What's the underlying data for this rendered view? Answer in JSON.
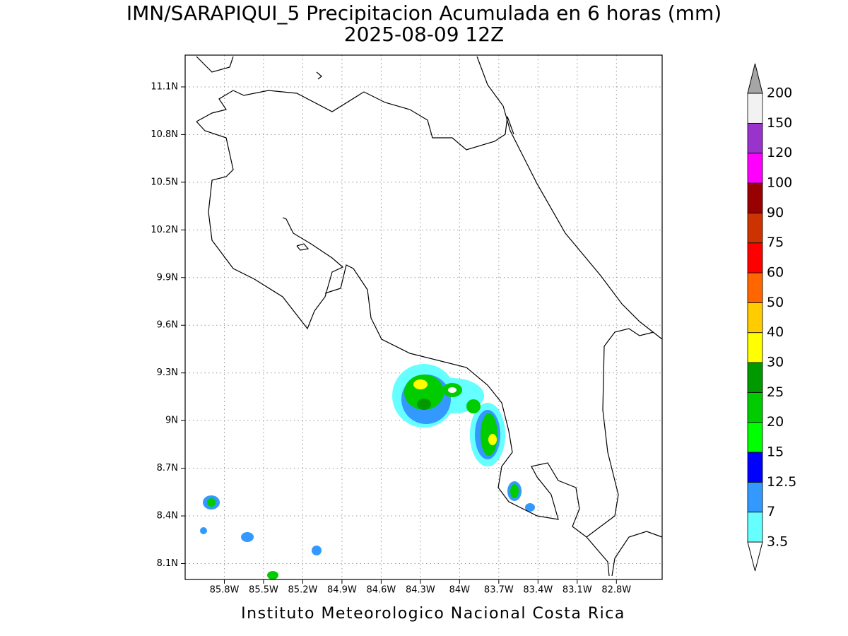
{
  "map": {
    "title": "IMN/SARAPIQUI_5 Precipitacion Acumulada en 6 horas (mm)",
    "subtitle": "2025-08-09 12Z",
    "footer": "Instituto Meteorologico Nacional Costa Rica",
    "xlim": [
      -86.1,
      -82.45
    ],
    "ylim": [
      8.0,
      11.3
    ],
    "grid": true,
    "xticks": [
      {
        "value": -85.8,
        "label": "85.8W"
      },
      {
        "value": -85.5,
        "label": "85.5W"
      },
      {
        "value": -85.2,
        "label": "85.2W"
      },
      {
        "value": -84.9,
        "label": "84.9W"
      },
      {
        "value": -84.6,
        "label": "84.6W"
      },
      {
        "value": -84.3,
        "label": "84.3W"
      },
      {
        "value": -84.0,
        "label": "84W"
      },
      {
        "value": -83.7,
        "label": "83.7W"
      },
      {
        "value": -83.4,
        "label": "83.4W"
      },
      {
        "value": -83.1,
        "label": "83.1W"
      },
      {
        "value": -82.8,
        "label": "82.8W"
      }
    ],
    "yticks": [
      {
        "value": 8.1,
        "label": "8.1N"
      },
      {
        "value": 8.4,
        "label": "8.4N"
      },
      {
        "value": 8.7,
        "label": "8.7N"
      },
      {
        "value": 9.0,
        "label": "9N"
      },
      {
        "value": 9.3,
        "label": "9.3N"
      },
      {
        "value": 9.6,
        "label": "9.6N"
      },
      {
        "value": 9.9,
        "label": "9.9N"
      },
      {
        "value": 10.2,
        "label": "10.2N"
      },
      {
        "value": 10.5,
        "label": "10.5N"
      },
      {
        "value": 10.8,
        "label": "10.8N"
      },
      {
        "value": 11.1,
        "label": "11.1N"
      }
    ],
    "colorbar": {
      "levels": [
        3.5,
        7,
        12.5,
        15,
        20,
        25,
        30,
        40,
        50,
        60,
        75,
        90,
        100,
        120,
        150,
        200
      ],
      "colors": [
        "#ffffff",
        "#66ffff",
        "#3399ff",
        "#0000ff",
        "#00ff00",
        "#00cc00",
        "#009900",
        "#ffff00",
        "#ffcc00",
        "#ff6600",
        "#ff0000",
        "#cc3300",
        "#990000",
        "#ff00ff",
        "#9933cc",
        "#f2f2f2",
        "#a6a6a6"
      ]
    }
  }
}
